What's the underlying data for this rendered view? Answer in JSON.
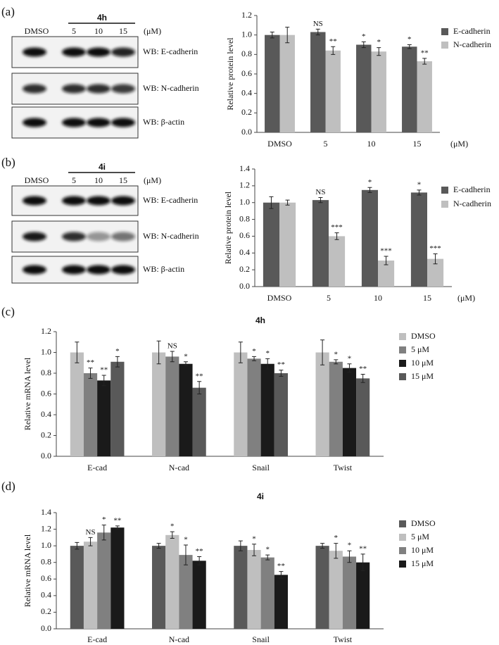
{
  "panels": [
    "(a)",
    "(b)",
    "(c)",
    "(d)"
  ],
  "blots": [
    {
      "compound": "4h",
      "lanes": [
        "DMSO",
        "5",
        "10",
        "15"
      ],
      "unit": "(μM)",
      "rows": [
        "WB: E-cadherin",
        "WB: N-cadherin",
        "WB: β-actin"
      ]
    },
    {
      "compound": "4i",
      "lanes": [
        "DMSO",
        "5",
        "10",
        "15"
      ],
      "unit": "(μM)",
      "rows": [
        "WB: E-cadherin",
        "WB: N-cadherin",
        "WB: β-actin"
      ]
    }
  ],
  "chart_data": [
    {
      "type": "bar",
      "y_label": "Relative protein level",
      "categories": [
        "DMSO",
        "5",
        "10",
        "15"
      ],
      "x_unit": "(μM)",
      "ylim": [
        0,
        1.2
      ],
      "yticks": [
        {
          "value": 0,
          "label": "0.0"
        },
        0.2,
        0.4,
        0.6,
        0.8,
        {
          "value": 1,
          "label": "1.0"
        },
        1.2
      ],
      "grid": false,
      "legend": "right",
      "series": [
        {
          "name": "E-cadherin",
          "color": "#595959",
          "values": [
            1.0,
            1.03,
            0.9,
            0.88
          ],
          "errors": [
            0.03,
            0.03,
            0.03,
            0.02
          ],
          "annotations": [
            null,
            "NS",
            "*",
            "*"
          ]
        },
        {
          "name": "N-cadherin",
          "color": "#bfbfbf",
          "values": [
            1.0,
            0.84,
            0.83,
            0.73
          ],
          "errors": [
            0.08,
            0.04,
            0.04,
            0.03
          ],
          "annotations": [
            null,
            "**",
            "*",
            "**"
          ]
        }
      ]
    },
    {
      "type": "bar",
      "y_label": "Relative protein level",
      "categories": [
        "DMSO",
        "5",
        "10",
        "15"
      ],
      "x_unit": "(μM)",
      "ylim": [
        0,
        1.4
      ],
      "yticks": [
        {
          "value": 0,
          "label": "0.0"
        },
        0.2,
        0.4,
        0.6,
        0.8,
        {
          "value": 1,
          "label": "1.0"
        },
        1.2,
        1.4
      ],
      "grid": false,
      "legend": "right",
      "series": [
        {
          "name": "E-cadherin",
          "color": "#595959",
          "values": [
            1.0,
            1.03,
            1.15,
            1.12
          ],
          "errors": [
            0.07,
            0.03,
            0.03,
            0.03
          ],
          "annotations": [
            null,
            "NS",
            "*",
            "*"
          ]
        },
        {
          "name": "N-cadherin",
          "color": "#bfbfbf",
          "values": [
            1.0,
            0.6,
            0.31,
            0.33
          ],
          "errors": [
            0.03,
            0.04,
            0.05,
            0.06
          ],
          "annotations": [
            null,
            "***",
            "***",
            "***"
          ]
        }
      ]
    },
    {
      "type": "bar",
      "title": "4h",
      "y_label": "Relative mRNA level",
      "categories": [
        "E-cad",
        "N-cad",
        "Snail",
        "Twist"
      ],
      "ylim": [
        0,
        1.2
      ],
      "yticks": [
        {
          "value": 0,
          "label": "0.0"
        },
        0.2,
        0.4,
        0.6,
        0.8,
        {
          "value": 1,
          "label": "1.0"
        },
        1.2
      ],
      "grid": false,
      "legend": "right",
      "series": [
        {
          "name": "DMSO",
          "color": "#bfbfbf",
          "values": [
            1.0,
            1.0,
            1.0,
            1.0
          ],
          "errors": [
            0.1,
            0.11,
            0.1,
            0.12
          ],
          "annotations": [
            null,
            null,
            null,
            null
          ]
        },
        {
          "name": "5 μM",
          "color": "#808080",
          "values": [
            0.8,
            0.96,
            0.94,
            0.91
          ],
          "errors": [
            0.05,
            0.05,
            0.02,
            0.02
          ],
          "annotations": [
            "**",
            "NS",
            "*",
            "*"
          ]
        },
        {
          "name": "10 μM",
          "color": "#1a1a1a",
          "values": [
            0.73,
            0.89,
            0.89,
            0.85
          ],
          "errors": [
            0.05,
            0.02,
            0.05,
            0.04
          ],
          "annotations": [
            "**",
            "*",
            "*",
            "*"
          ]
        },
        {
          "name": "15 μM",
          "color": "#595959",
          "values": [
            0.91,
            0.66,
            0.8,
            0.75
          ],
          "errors": [
            0.05,
            0.06,
            0.03,
            0.04
          ],
          "annotations": [
            "*",
            "**",
            "**",
            "**"
          ]
        }
      ]
    },
    {
      "type": "bar",
      "title": "4i",
      "y_label": "Relative mRNA level",
      "categories": [
        "E-cad",
        "N-cad",
        "Snail",
        "Twist"
      ],
      "ylim": [
        0,
        1.4
      ],
      "yticks": [
        {
          "value": 0,
          "label": "0.0"
        },
        0.2,
        0.4,
        0.6,
        0.8,
        {
          "value": 1,
          "label": "1.0"
        },
        1.2,
        1.4
      ],
      "grid": false,
      "legend": "right",
      "series": [
        {
          "name": "DMSO",
          "color": "#595959",
          "values": [
            1.0,
            1.0,
            1.0,
            1.0
          ],
          "errors": [
            0.04,
            0.03,
            0.06,
            0.03
          ],
          "annotations": [
            null,
            null,
            null,
            null
          ]
        },
        {
          "name": "5 μM",
          "color": "#bfbfbf",
          "values": [
            1.05,
            1.13,
            0.95,
            0.94
          ],
          "errors": [
            0.05,
            0.04,
            0.07,
            0.09
          ],
          "annotations": [
            "NS",
            "*",
            "*",
            "*"
          ]
        },
        {
          "name": "10 μM",
          "color": "#808080",
          "values": [
            1.16,
            0.89,
            0.86,
            0.87
          ],
          "errors": [
            0.09,
            0.12,
            0.03,
            0.07
          ],
          "annotations": [
            "*",
            "*",
            "*",
            "*"
          ]
        },
        {
          "name": "15 μM",
          "color": "#1a1a1a",
          "values": [
            1.22,
            0.82,
            0.65,
            0.8
          ],
          "errors": [
            0.02,
            0.05,
            0.04,
            0.1
          ],
          "annotations": [
            "**",
            "**",
            "**",
            "**"
          ]
        }
      ]
    }
  ]
}
